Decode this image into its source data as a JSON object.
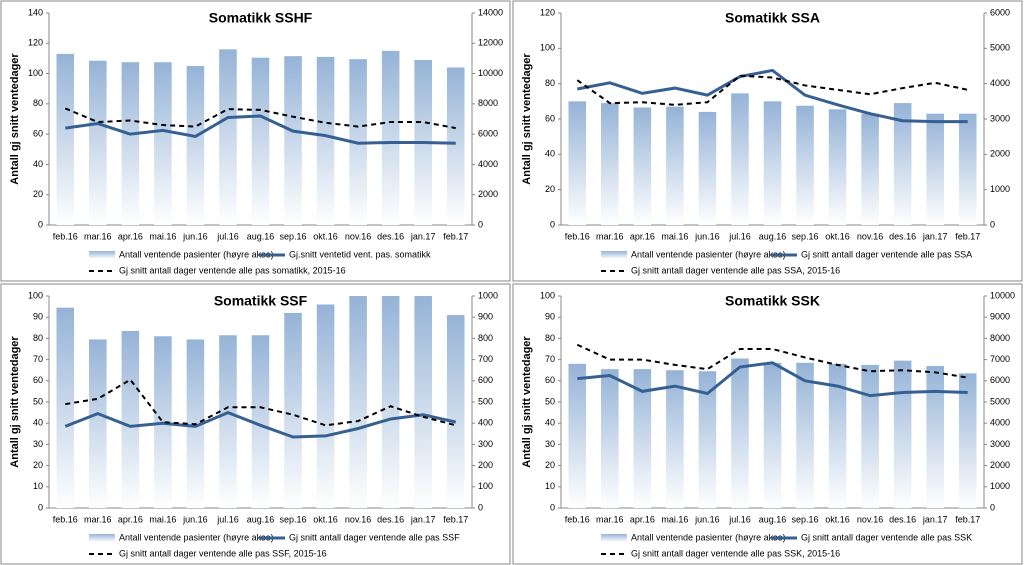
{
  "chart_data": [
    {
      "type": "bar-line",
      "title": "Somatikk SSHF",
      "ylabel": "Antall gj snitt ventedager",
      "categories": [
        "feb.16",
        "mar.16",
        "apr.16",
        "mai.16",
        "jun.16",
        "jul.16",
        "aug.16",
        "sep.16",
        "okt.16",
        "nov.16",
        "des.16",
        "jan.17",
        "feb.17"
      ],
      "ylim": [
        0,
        140
      ],
      "yticks": [
        0,
        20,
        40,
        60,
        80,
        100,
        120,
        140
      ],
      "y2lim": [
        0,
        14000
      ],
      "y2ticks": [
        0,
        2000,
        4000,
        6000,
        8000,
        10000,
        12000,
        14000
      ],
      "series": [
        {
          "name": "Antall ventende pasienter (høyre akse)",
          "kind": "bar",
          "axis": "y2",
          "color": "#95b3d7",
          "values": [
            11300,
            10850,
            10750,
            10750,
            10500,
            11600,
            11050,
            11150,
            11100,
            10950,
            11500,
            10900,
            10400
          ]
        },
        {
          "name": "Gj.snitt ventetid vent. pas. somatikk",
          "kind": "line",
          "color": "#376092",
          "values": [
            64,
            67,
            60,
            62.5,
            58.5,
            71,
            72,
            62,
            59,
            54,
            54.5,
            54.5,
            54
          ]
        },
        {
          "name": "Gj snitt antall dager ventende alle pas somatikk, 2015-16",
          "kind": "dashed",
          "color": "#000000",
          "values": [
            77,
            68,
            69,
            66,
            65,
            76.5,
            76,
            71.5,
            67.5,
            65,
            68,
            68,
            64
          ]
        }
      ]
    },
    {
      "type": "bar-line",
      "title": "Somatikk SSA",
      "ylabel": "Antall gj snitt ventedager",
      "categories": [
        "feb.16",
        "mar.16",
        "apr.16",
        "mai.16",
        "jun.16",
        "jul.16",
        "aug.16",
        "sep.16",
        "okt.16",
        "nov.16",
        "des.16",
        "jan.17",
        "feb.17"
      ],
      "ylim": [
        0,
        120
      ],
      "yticks": [
        0,
        20,
        40,
        60,
        80,
        100,
        120
      ],
      "y2lim": [
        0,
        6000
      ],
      "y2ticks": [
        0,
        1000,
        2000,
        3000,
        4000,
        5000,
        6000
      ],
      "series": [
        {
          "name": "Antall ventende pasienter (høyre akse)",
          "kind": "bar",
          "axis": "y2",
          "color": "#95b3d7",
          "values": [
            3500,
            3450,
            3325,
            3350,
            3200,
            3725,
            3500,
            3375,
            3275,
            3150,
            3450,
            3150,
            3150
          ]
        },
        {
          "name": "Gj snitt antall dager ventende alle pas SSA",
          "kind": "line",
          "color": "#376092",
          "values": [
            77,
            80.5,
            74.5,
            77.5,
            73.5,
            84,
            87.5,
            73.5,
            68,
            63,
            59,
            58.5,
            58.5
          ]
        },
        {
          "name": "Gj snitt antall dager ventende alle pas SSA, 2015-16",
          "kind": "dashed",
          "color": "#000000",
          "values": [
            82,
            69,
            69.5,
            68,
            69.5,
            84.5,
            83.5,
            79,
            76.5,
            74,
            77.5,
            80.5,
            76.5
          ]
        }
      ]
    },
    {
      "type": "bar-line",
      "title": "Somatikk SSF",
      "ylabel": "Antall gj snitt ventedager",
      "categories": [
        "feb.16",
        "mar.16",
        "apr.16",
        "mai.16",
        "jun.16",
        "jul.16",
        "aug.16",
        "sep.16",
        "okt.16",
        "nov.16",
        "des.16",
        "jan.17",
        "feb.17"
      ],
      "ylim": [
        0,
        100
      ],
      "yticks": [
        0,
        10,
        20,
        30,
        40,
        50,
        60,
        70,
        80,
        90,
        100
      ],
      "y2lim": [
        0,
        1000
      ],
      "y2ticks": [
        0,
        100,
        200,
        300,
        400,
        500,
        600,
        700,
        800,
        900,
        1000
      ],
      "series": [
        {
          "name": "Antall ventende pasienter (høyre akse)",
          "kind": "bar",
          "axis": "y2",
          "color": "#95b3d7",
          "values": [
            945,
            795,
            835,
            810,
            795,
            815,
            815,
            920,
            960,
            1000,
            1000,
            1000,
            910
          ]
        },
        {
          "name": "Gj snitt antall dager ventende alle pas SSF",
          "kind": "line",
          "color": "#376092",
          "values": [
            38.5,
            44.5,
            38.5,
            40,
            38.5,
            45,
            39,
            33.5,
            34,
            37.5,
            42,
            44,
            40.5
          ]
        },
        {
          "name": "Gj snitt antall dager ventende alle pas SSF, 2015-16",
          "kind": "dashed",
          "color": "#000000",
          "values": [
            49,
            51.5,
            60.5,
            40.5,
            39.5,
            47.5,
            47.5,
            44,
            39,
            41,
            48,
            43,
            39
          ]
        }
      ]
    },
    {
      "type": "bar-line",
      "title": "Somatikk SSK",
      "ylabel": "Antall gj snitt ventedager",
      "categories": [
        "feb.16",
        "mar.16",
        "apr.16",
        "mai.16",
        "jun.16",
        "jul.16",
        "aug.16",
        "sep.16",
        "okt.16",
        "nov.16",
        "des.16",
        "jan.17",
        "feb.17"
      ],
      "ylim": [
        0,
        100
      ],
      "yticks": [
        0,
        10,
        20,
        30,
        40,
        50,
        60,
        70,
        80,
        90,
        100
      ],
      "y2lim": [
        0,
        10000
      ],
      "y2ticks": [
        0,
        1000,
        2000,
        3000,
        4000,
        5000,
        6000,
        7000,
        8000,
        9000,
        10000
      ],
      "series": [
        {
          "name": "Antall ventende pasienter (høyre akse)",
          "kind": "bar",
          "axis": "y2",
          "color": "#95b3d7",
          "values": [
            6800,
            6550,
            6550,
            6500,
            6450,
            7050,
            6850,
            6850,
            6800,
            6750,
            6950,
            6700,
            6350
          ]
        },
        {
          "name": "Gj snitt antall dager ventende alle pas SSK",
          "kind": "line",
          "color": "#376092",
          "values": [
            61,
            62.5,
            55,
            57.5,
            54,
            66.5,
            68.5,
            60,
            57.5,
            53,
            54.5,
            55,
            54.5
          ]
        },
        {
          "name": "Gj snitt antall dager ventende alle pas SSK, 2015-16",
          "kind": "dashed",
          "color": "#000000",
          "values": [
            77,
            70,
            70,
            67.5,
            65.5,
            75,
            75,
            71,
            67.5,
            64.5,
            65,
            64,
            61.5
          ]
        }
      ]
    }
  ]
}
